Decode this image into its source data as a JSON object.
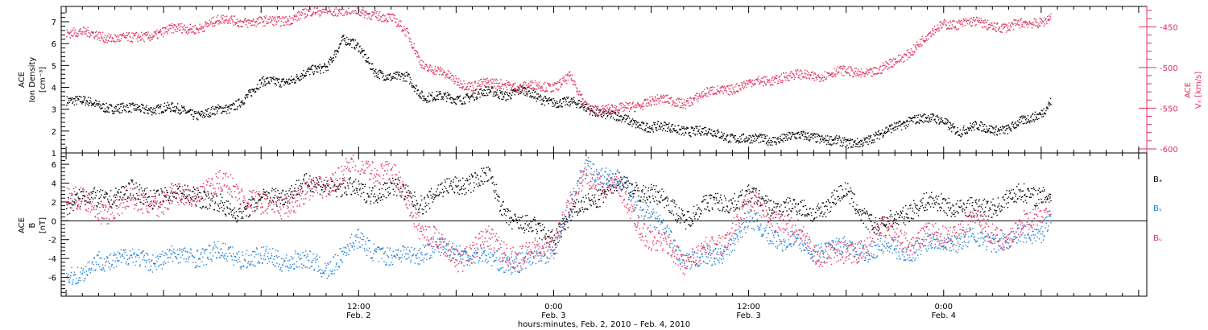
{
  "colors": {
    "black": "#000000",
    "pink": "#e0305f",
    "blue": "#1f80d8"
  },
  "footer": {
    "xlabel": "hours:minutes, Feb.  2, 2010 – Feb.  4, 2010"
  },
  "x_ticks": [
    {
      "time": "12:00",
      "date": "Feb. 2",
      "hours": 12
    },
    {
      "time": "0:00",
      "date": "Feb. 3",
      "hours": 24
    },
    {
      "time": "12:00",
      "date": "Feb. 3",
      "hours": 36
    },
    {
      "time": "0:00",
      "date": "Feb. 4",
      "hours": 48
    }
  ],
  "chart_data": [
    {
      "type": "scatter",
      "panel": "top",
      "xlabel": "hours:minutes, Feb.  2, 2010 – Feb.  4, 2010",
      "x_unit": "hours since Feb. 2, 2010 00:00",
      "xlim": [
        -6.3,
        60.5
      ],
      "ylabel_left_lines": [
        "ACE",
        "Ion Density"
      ],
      "ylabel_left_unit": "[cm⁻³]",
      "ylim_left": [
        1,
        7.7
      ],
      "yticks_left": [
        1,
        2,
        3,
        4,
        5,
        6,
        7
      ],
      "ylabel_right_lines": [
        "ACE",
        "Vₓ [km/s]"
      ],
      "ylim_right": [
        -605,
        -425
      ],
      "yticks_right": [
        -600,
        -550,
        -500,
        -450
      ],
      "grid": false,
      "series": [
        {
          "color": "black",
          "axis": "left",
          "x": [
            -6,
            -4,
            -2,
            0,
            2,
            4,
            6,
            8,
            10,
            11,
            12,
            13,
            14,
            15,
            16,
            18,
            20,
            21,
            22,
            23,
            24,
            25,
            26,
            28,
            30,
            32,
            34,
            36,
            38,
            40,
            42,
            44,
            46,
            48,
            49,
            50,
            52,
            54,
            54.6
          ],
          "y": [
            3.5,
            3.2,
            3.0,
            3.1,
            2.8,
            3.0,
            4.2,
            4.4,
            5.0,
            6.2,
            5.8,
            4.8,
            4.4,
            4.5,
            3.6,
            3.5,
            3.8,
            3.7,
            3.9,
            3.5,
            3.4,
            3.3,
            3.1,
            2.6,
            2.2,
            2.1,
            1.9,
            1.6,
            1.7,
            1.8,
            1.4,
            1.8,
            2.6,
            2.5,
            2.0,
            2.2,
            2.1,
            2.9,
            3.4
          ]
        },
        {
          "color": "pink",
          "axis": "right",
          "x": [
            -6,
            -4,
            -2,
            0,
            2,
            4,
            6,
            8,
            10,
            11,
            12,
            13,
            14,
            15,
            16,
            18,
            19,
            20,
            21,
            22,
            23,
            24,
            25,
            26,
            28,
            30,
            32,
            34,
            36,
            38,
            40,
            42,
            44,
            46,
            48,
            50,
            52,
            54,
            54.6
          ],
          "y": [
            -455,
            -460,
            -465,
            -455,
            -450,
            -440,
            -445,
            -438,
            -428,
            -430,
            -432,
            -433,
            -440,
            -458,
            -498,
            -515,
            -522,
            -520,
            -518,
            -525,
            -522,
            -522,
            -512,
            -548,
            -552,
            -540,
            -542,
            -528,
            -520,
            -511,
            -509,
            -505,
            -505,
            -478,
            -445,
            -445,
            -450,
            -442,
            -436
          ]
        }
      ]
    },
    {
      "type": "scatter",
      "panel": "bottom",
      "xlabel": "hours:minutes, Feb.  2, 2010 – Feb.  4, 2010",
      "x_unit": "hours since Feb. 2, 2010 00:00",
      "xlim": [
        -6.3,
        60.5
      ],
      "ylabel_lines": [
        "ACE",
        "B"
      ],
      "ylabel_unit": "[nT]",
      "ylim": [
        -8,
        7.2
      ],
      "yticks": [
        -6,
        -4,
        -2,
        0,
        2,
        4,
        6
      ],
      "zero_line": true,
      "grid": false,
      "legend_placement": "right",
      "series": [
        {
          "name": "Bₓ",
          "color": "black",
          "x": [
            -6,
            -4,
            -2,
            0,
            2,
            4,
            6,
            8,
            10,
            12,
            14,
            16,
            18,
            20,
            21,
            22,
            24,
            26,
            28,
            30,
            32,
            34,
            36,
            38,
            40,
            42,
            44,
            46,
            48,
            50,
            52,
            54,
            54.6
          ],
          "y": [
            2,
            2.5,
            3,
            2.6,
            3,
            1,
            2,
            3.5,
            4,
            3,
            3.5,
            2,
            4,
            4.5,
            1,
            -0.5,
            -1.5,
            2,
            4,
            3,
            0.5,
            2,
            2.5,
            1.5,
            1,
            3,
            -1,
            1.5,
            2,
            1,
            2.5,
            3,
            3
          ]
        },
        {
          "name": "Bᵧ",
          "color": "blue",
          "x": [
            -6,
            -5,
            -4,
            -2,
            0,
            2,
            4,
            6,
            8,
            10,
            12,
            14,
            16,
            18,
            20,
            22,
            24,
            26,
            28,
            30,
            32,
            34,
            36,
            38,
            40,
            42,
            44,
            46,
            48,
            50,
            52,
            54,
            54.6
          ],
          "y": [
            -5.5,
            -6,
            -4,
            -4,
            -4,
            -3.5,
            -3.5,
            -4,
            -4,
            -5,
            -2,
            -4,
            -3,
            -3,
            -4,
            -4.5,
            -3,
            6,
            4,
            0.5,
            -4,
            -4,
            0,
            -2,
            -3,
            -3,
            -3,
            -3,
            -2,
            -2,
            -2,
            -1,
            1
          ]
        },
        {
          "name": "Bᵤ",
          "color": "pink",
          "x": [
            -6,
            -4,
            -2,
            0,
            2,
            4,
            6,
            8,
            10,
            12,
            14,
            16,
            18,
            20,
            22,
            24,
            26,
            28,
            30,
            32,
            34,
            36,
            38,
            40,
            42,
            44,
            46,
            48,
            50,
            52,
            54,
            54.6
          ],
          "y": [
            3,
            1,
            2,
            2,
            3,
            4,
            1.5,
            2,
            4,
            6,
            5,
            -1,
            -4,
            -2,
            -4,
            -2,
            5,
            3,
            -2,
            -4,
            -3,
            2,
            0,
            -3,
            -4,
            -1,
            -2,
            -1.5,
            0,
            -2,
            1.5,
            2
          ]
        }
      ]
    }
  ]
}
